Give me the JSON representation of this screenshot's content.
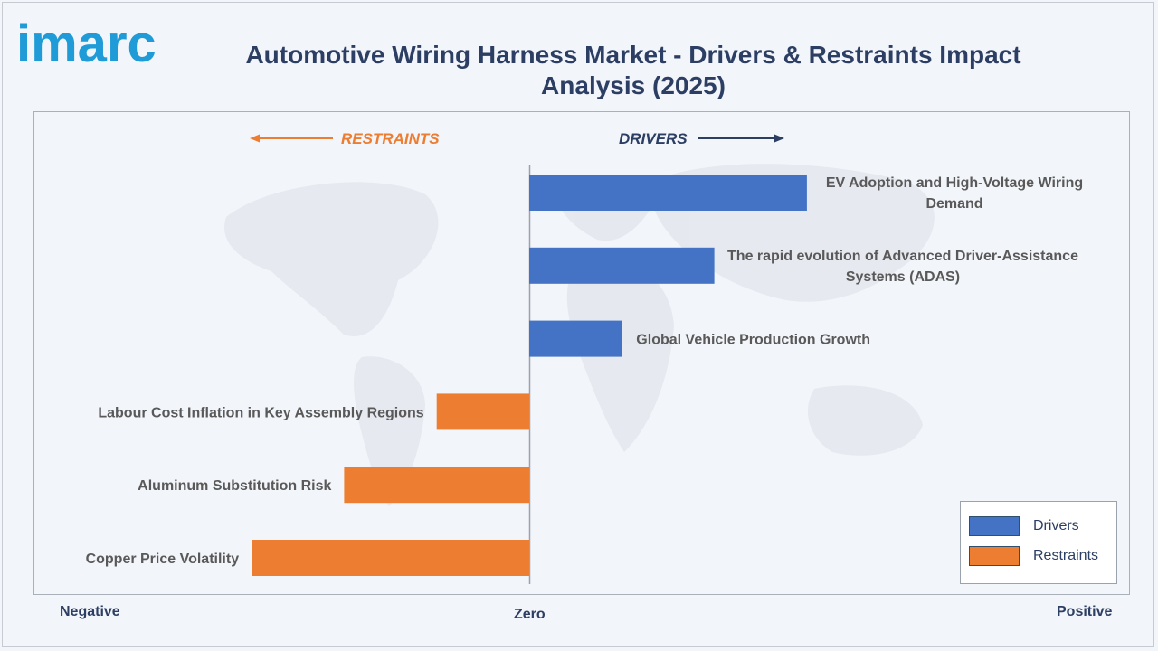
{
  "brand": {
    "logo_text": "imarc"
  },
  "chart_data": {
    "type": "bar",
    "orientation": "horizontal",
    "title": "Automotive Wiring Harness Market - Drivers & Restraints Impact Analysis (2025)",
    "direction_labels": {
      "restraints": "RESTRAINTS",
      "drivers": "DRIVERS"
    },
    "axis_labels": {
      "negative": "Negative",
      "zero": "Zero",
      "positive": "Positive"
    },
    "categories": [
      "EV Adoption and High-Voltage Wiring Demand",
      "The rapid evolution of Advanced Driver-Assistance Systems (ADAS)",
      "Global Vehicle Production Growth",
      "Labour Cost Inflation in Key Assembly Regions",
      "Aluminum Substitution Risk",
      "Copper Price Volatility"
    ],
    "series": [
      {
        "name": "Drivers",
        "color": "#4472c4",
        "values": [
          3,
          2,
          1,
          0,
          0,
          0
        ]
      },
      {
        "name": "Restraints",
        "color": "#ed7d31",
        "values": [
          0,
          0,
          0,
          -1,
          -2,
          -3
        ]
      }
    ],
    "xlim": [
      -5.4,
      6.0
    ],
    "grid": false,
    "legend_position": "bottom-right",
    "colors": {
      "drivers": "#4472c4",
      "restraints": "#ed7d31",
      "accent_arrow": "#ed7d31",
      "title": "#2c3e63"
    }
  }
}
